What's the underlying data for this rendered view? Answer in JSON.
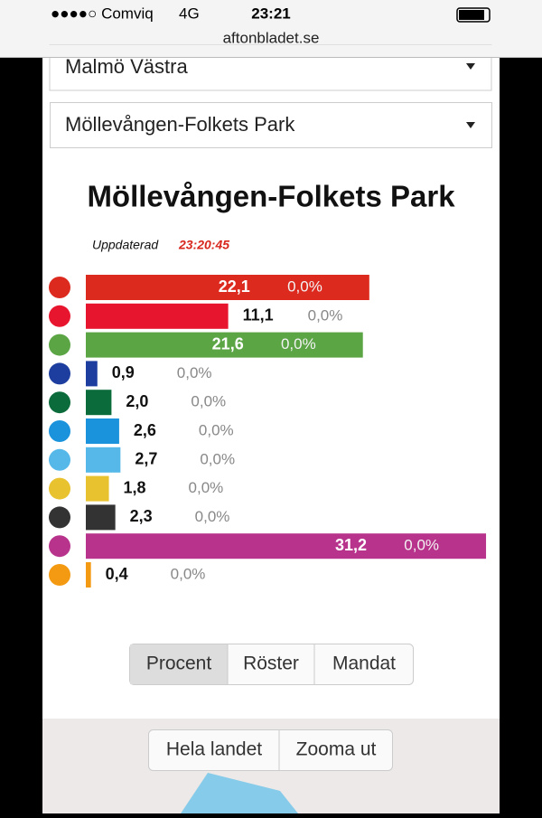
{
  "status_bar": {
    "carrier": "●●●●○ Comviq",
    "network": "4G",
    "time": "23:21"
  },
  "url": "aftonbladet.se",
  "dropdowns": [
    "Malmö Västra",
    "Möllevången-Folkets Park"
  ],
  "updated_label": "Uppdaterad",
  "updated_time": "23:20:45",
  "chart_data": {
    "type": "bar",
    "orientation": "horizontal",
    "title": "Möllevången-Folkets Park",
    "values": [
      22.1,
      11.1,
      21.6,
      0.9,
      2.0,
      2.6,
      2.7,
      1.8,
      2.3,
      31.2,
      0.4
    ],
    "value_labels": [
      "22,1",
      "11,1",
      "21,6",
      "0,9",
      "2,0",
      "2,6",
      "2,7",
      "1,8",
      "2,3",
      "31,2",
      "0,4"
    ],
    "change_labels": [
      "0,0%",
      "0,0%",
      "0,0%",
      "0,0%",
      "0,0%",
      "0,0%",
      "0,0%",
      "0,0%",
      "0,0%",
      "0,0%",
      "0,0%"
    ],
    "colors": [
      "#dc2a1f",
      "#e8152f",
      "#5ba545",
      "#1d3e9e",
      "#0c6b3b",
      "#1a93dc",
      "#55b8e8",
      "#e8c22f",
      "#333333",
      "#b8348c",
      "#f39a12"
    ]
  },
  "tabs": [
    "Procent",
    "Röster",
    "Mandat"
  ],
  "map_buttons": [
    "Hela landet",
    "Zooma ut"
  ]
}
